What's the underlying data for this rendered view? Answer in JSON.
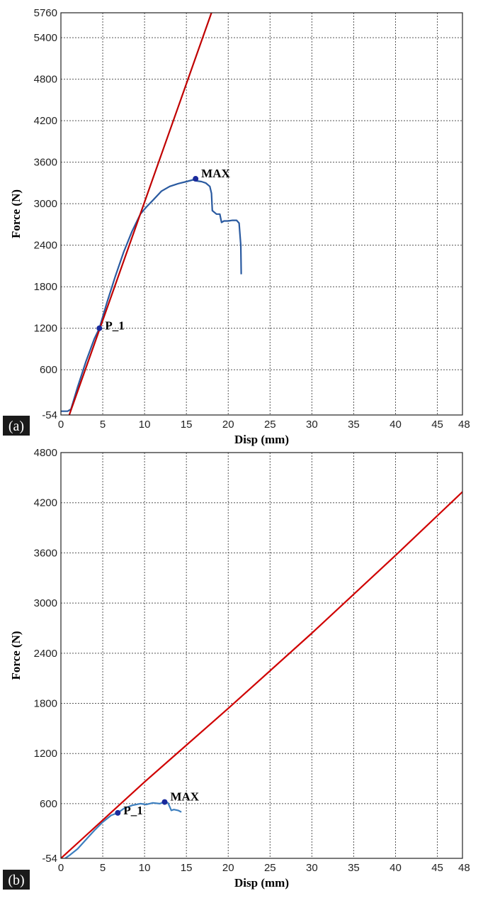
{
  "chart_data": [
    {
      "panel": "(a)",
      "type": "line",
      "xlabel": "Disp (mm)",
      "ylabel": "Force (N)",
      "xlim": [
        0,
        48
      ],
      "ylim": [
        -54,
        5760
      ],
      "xticks": [
        0,
        5,
        10,
        15,
        20,
        25,
        30,
        35,
        40,
        45,
        48
      ],
      "yticks": [
        -54,
        600,
        1200,
        1800,
        2400,
        3000,
        3600,
        4200,
        4800,
        5400,
        5760
      ],
      "grid": true,
      "series": [
        {
          "color": "#2a5aa0",
          "x": [
            0,
            0.8,
            1.2,
            2,
            3,
            4,
            4.6,
            5.5,
            6.5,
            7.5,
            8.5,
            9.5,
            10.2,
            11,
            12,
            13,
            14,
            15,
            15.8,
            16.2,
            16.8,
            17.3,
            17.8,
            18.0,
            18.1,
            18.6,
            19.0,
            19.2,
            19.5,
            20,
            20.5,
            21,
            21.3,
            21.5,
            21.55
          ],
          "y": [
            0,
            0,
            30,
            350,
            720,
            1050,
            1200,
            1570,
            1950,
            2300,
            2600,
            2850,
            2950,
            3050,
            3180,
            3250,
            3290,
            3320,
            3345,
            3330,
            3320,
            3300,
            3250,
            3150,
            2900,
            2850,
            2850,
            2730,
            2750,
            2750,
            2760,
            2760,
            2720,
            2400,
            1980
          ]
        },
        {
          "color": "#c00000",
          "x": [
            1,
            18
          ],
          "y": [
            -54,
            5760
          ]
        }
      ],
      "annotations": [
        {
          "label": "P_1",
          "x": 4.6,
          "y": 1200
        },
        {
          "label": "MAX",
          "x": 16.1,
          "y": 3360
        }
      ]
    },
    {
      "panel": "(b)",
      "type": "line",
      "xlabel": "Disp (mm)",
      "ylabel": "Force (N)",
      "xlim": [
        0,
        48
      ],
      "ylim": [
        -54,
        4800
      ],
      "xticks": [
        0,
        5,
        10,
        15,
        20,
        25,
        30,
        35,
        40,
        45,
        48
      ],
      "yticks": [
        -54,
        600,
        1200,
        1800,
        2400,
        3000,
        3600,
        4200,
        4800
      ],
      "grid": true,
      "series": [
        {
          "color": "#3d7fbf",
          "x": [
            0.5,
            1,
            2,
            3,
            4,
            5,
            6,
            6.8,
            7.5,
            8.5,
            9.5,
            10.2,
            11,
            11.8,
            12.4,
            12.8,
            13.2,
            13.5,
            14,
            14.4
          ],
          "y": [
            -54,
            -20,
            60,
            170,
            280,
            380,
            460,
            490,
            540,
            580,
            600,
            590,
            610,
            600,
            620,
            610,
            520,
            530,
            520,
            500
          ]
        },
        {
          "color": "#d00000",
          "x": [
            0,
            10,
            20,
            30,
            40,
            48
          ],
          "y": [
            -54,
            860,
            1740,
            2640,
            3570,
            4330
          ]
        }
      ],
      "annotations": [
        {
          "label": "P_1",
          "x": 6.8,
          "y": 490
        },
        {
          "label": "MAX",
          "x": 12.4,
          "y": 620
        }
      ]
    }
  ]
}
